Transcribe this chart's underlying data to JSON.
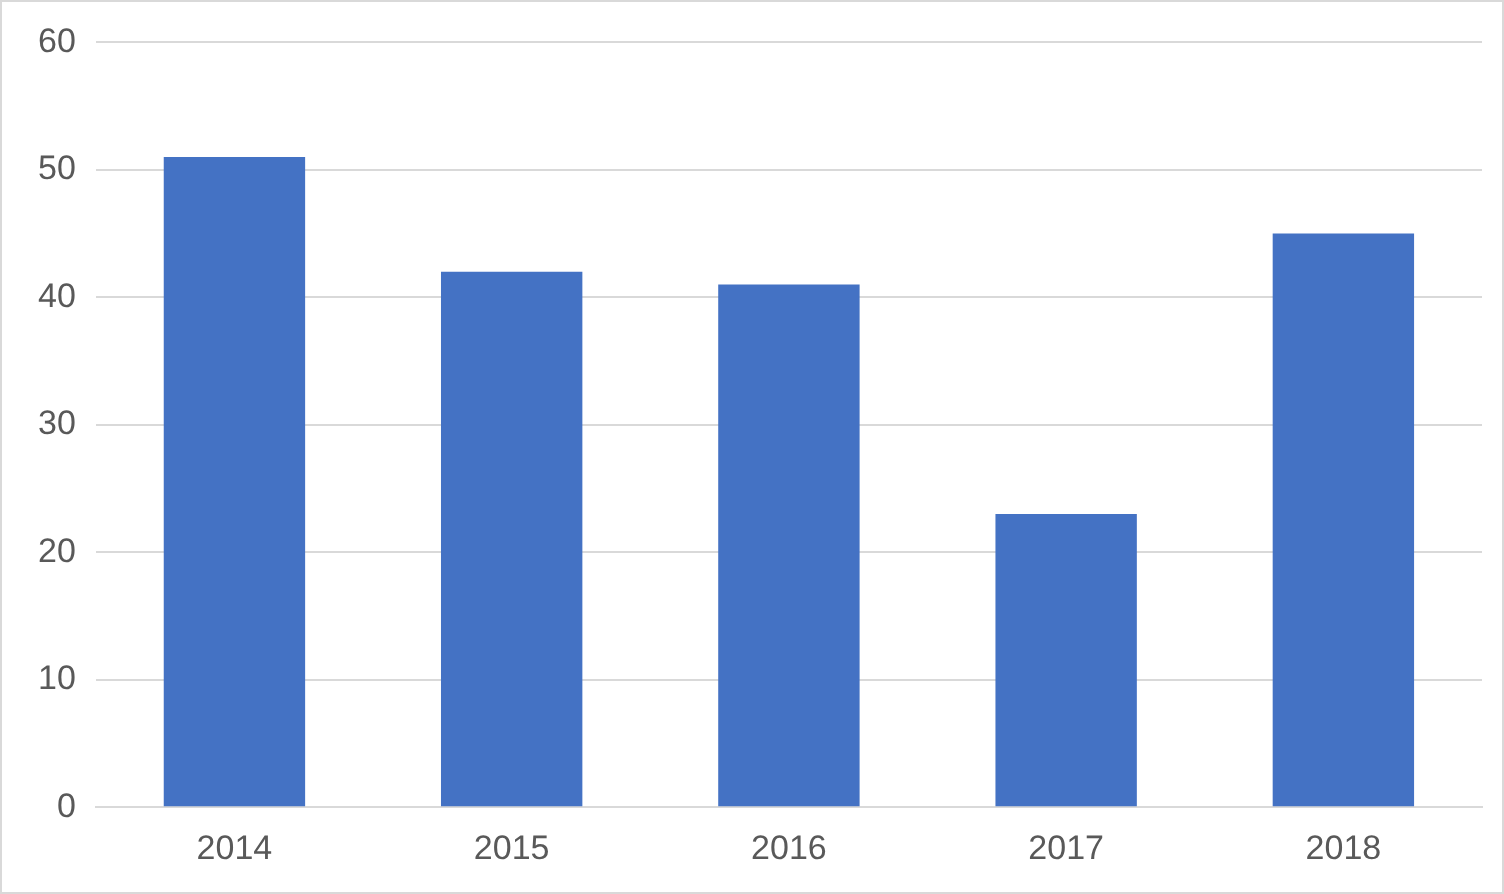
{
  "chart_data": {
    "type": "bar",
    "categories": [
      "2014",
      "2015",
      "2016",
      "2017",
      "2018"
    ],
    "values": [
      51,
      42,
      41,
      23,
      45
    ],
    "color": "#4472c4",
    "ylim": [
      0,
      60
    ],
    "yticks": [
      0,
      10,
      20,
      30,
      40,
      50,
      60
    ],
    "grid": "y",
    "legend": false
  }
}
